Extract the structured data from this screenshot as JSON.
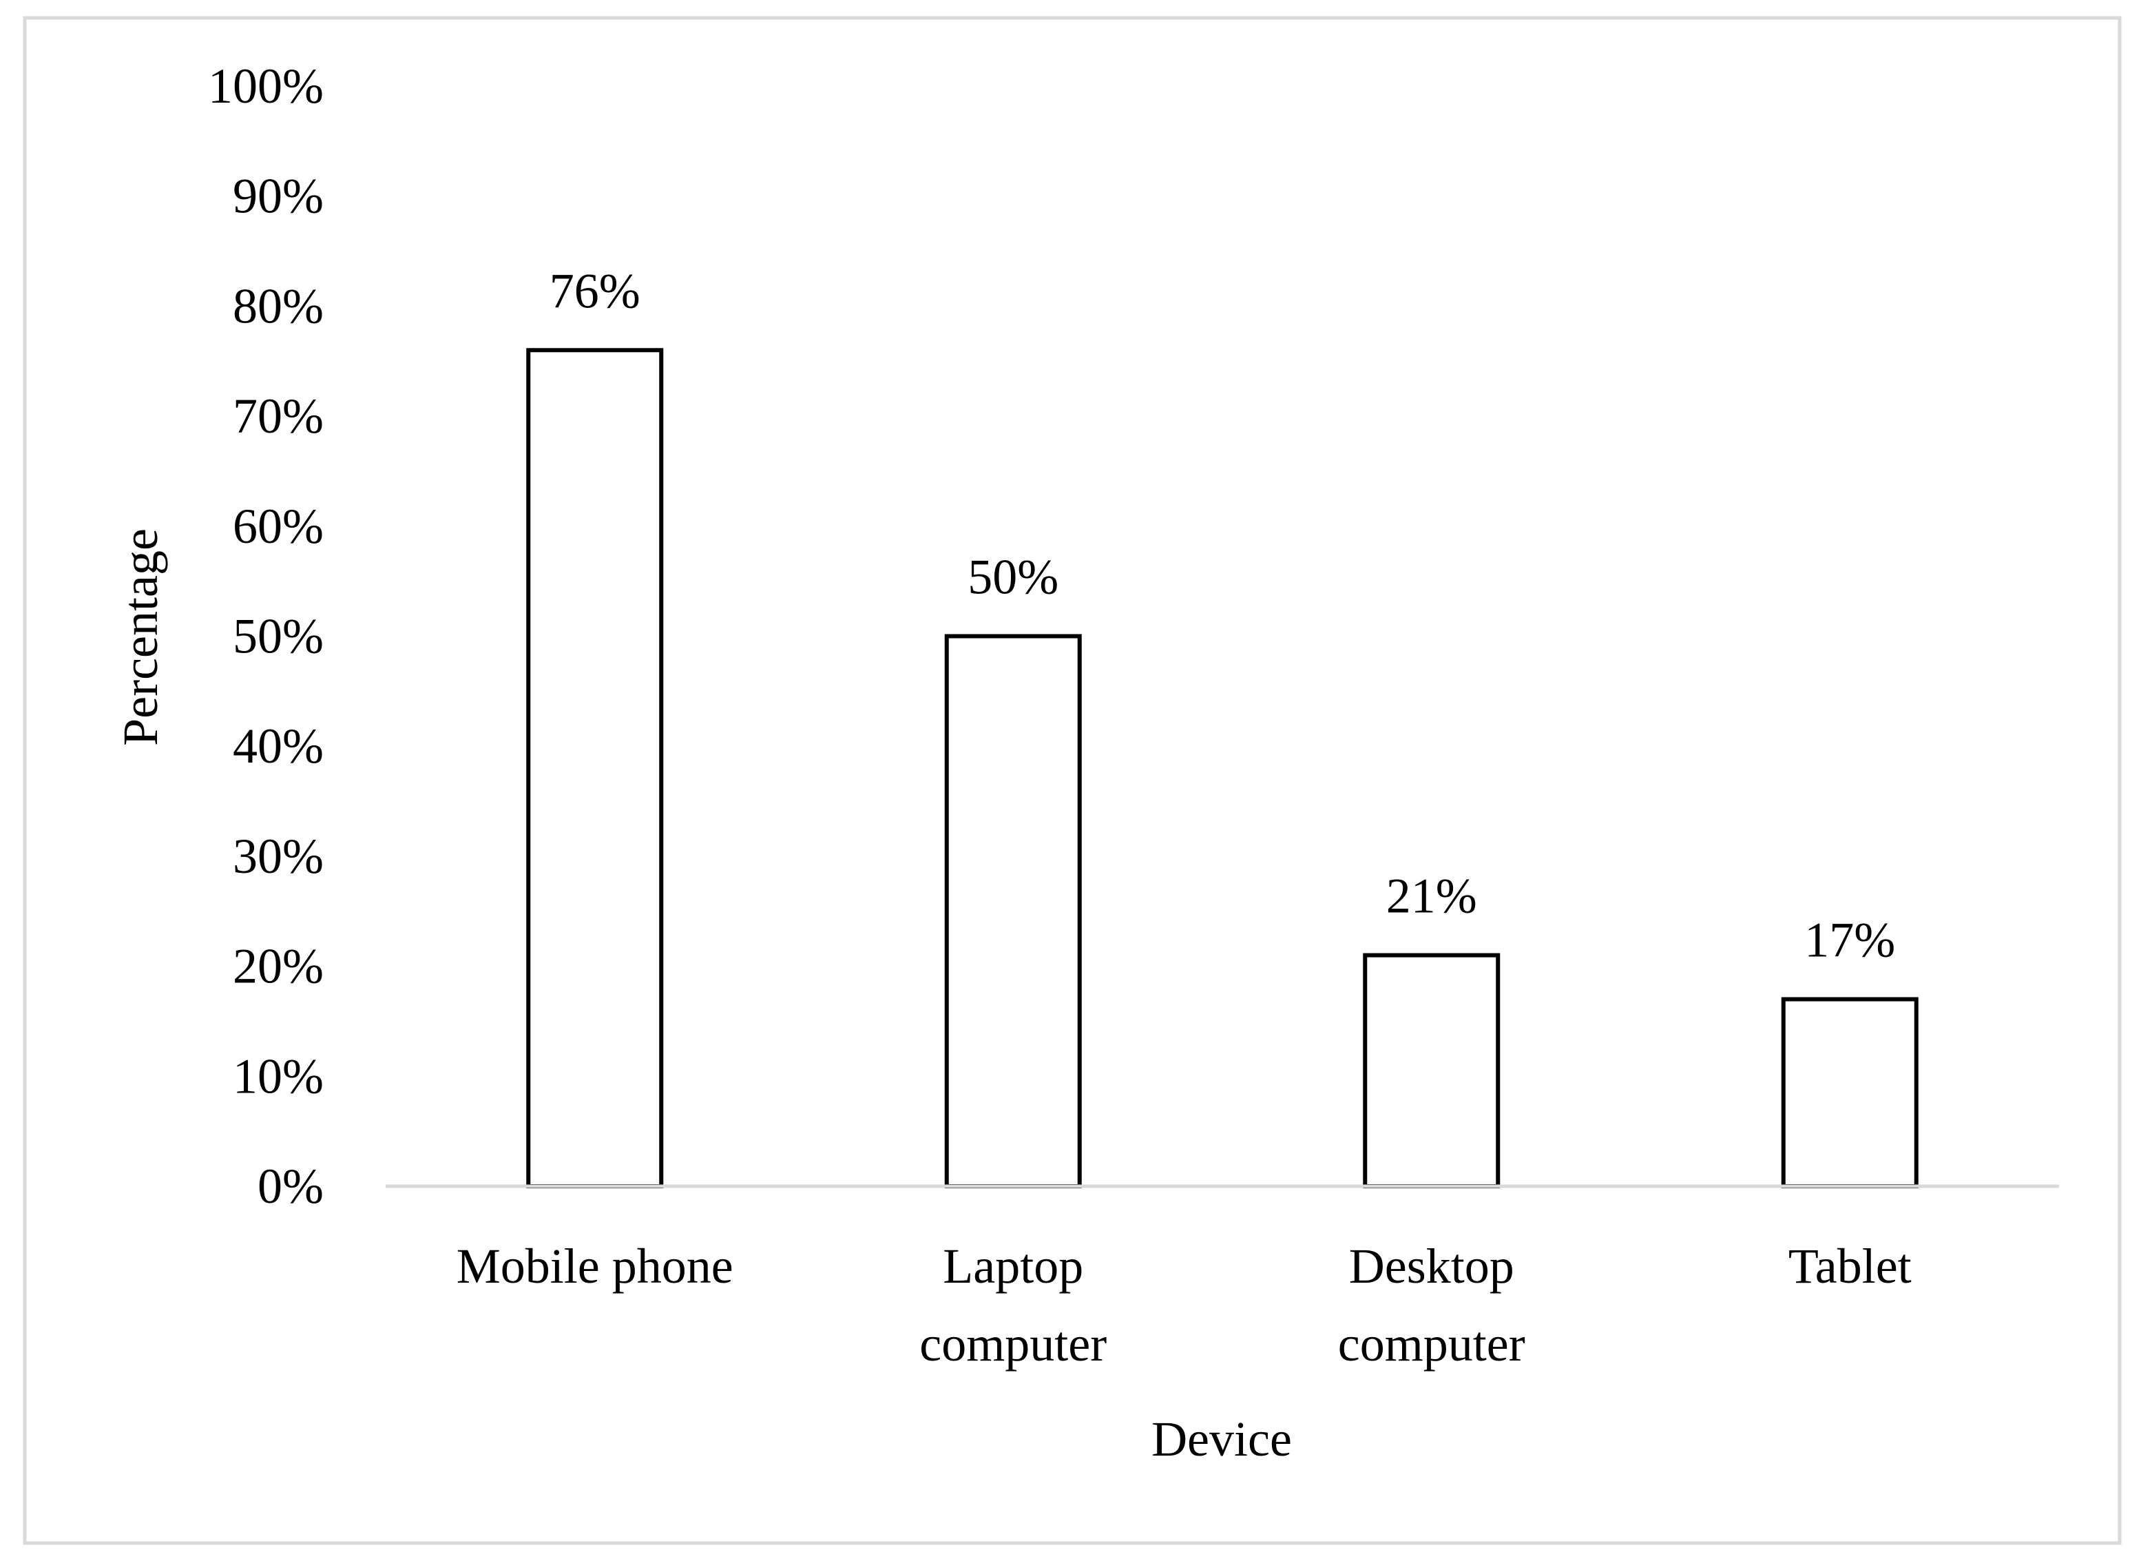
{
  "chart_data": {
    "type": "bar",
    "title": "",
    "xlabel": "Device",
    "ylabel": "Percentage",
    "categories": [
      [
        "Mobile phone"
      ],
      [
        "Laptop",
        "computer"
      ],
      [
        "Desktop",
        "computer"
      ],
      [
        "Tablet"
      ]
    ],
    "values": [
      76,
      50,
      21,
      17
    ],
    "value_labels": [
      "76%",
      "50%",
      "21%",
      "17%"
    ],
    "ylim": [
      0,
      100
    ],
    "yticks": [
      0,
      10,
      20,
      30,
      40,
      50,
      60,
      70,
      80,
      90,
      100
    ],
    "ytick_labels": [
      "0%",
      "10%",
      "20%",
      "30%",
      "40%",
      "50%",
      "60%",
      "70%",
      "80%",
      "90%",
      "100%"
    ],
    "grid": false,
    "legend": "none",
    "colors": {
      "bar_fill": "#ffffff",
      "bar_stroke": "#000000",
      "axis_line": "#d9d9d9",
      "frame": "#d9d9d9",
      "text": "#000000"
    }
  }
}
